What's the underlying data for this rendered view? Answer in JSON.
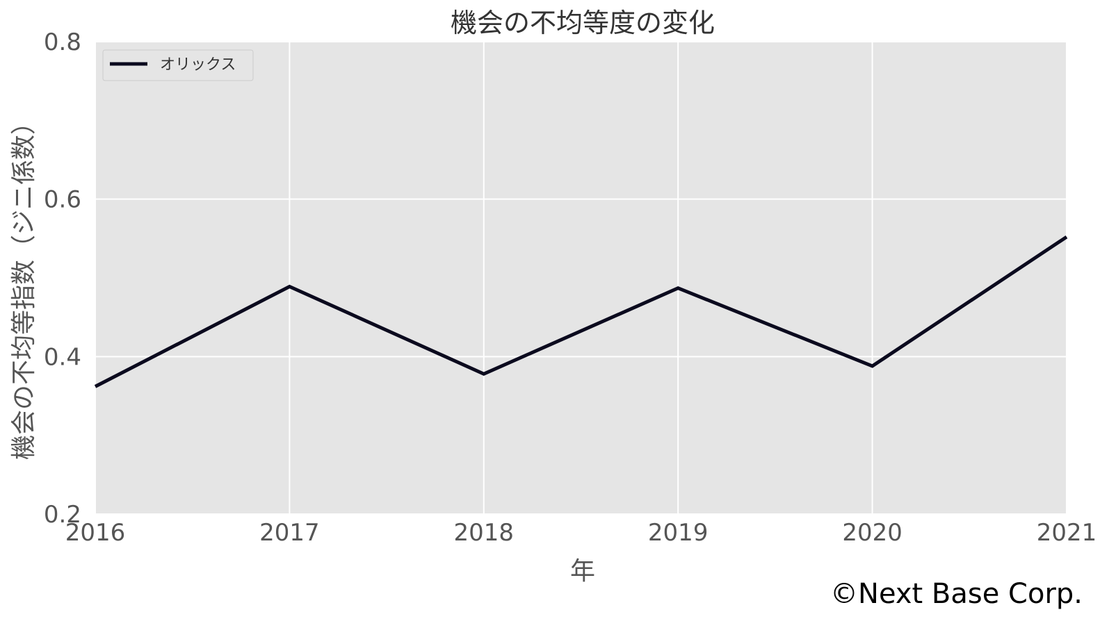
{
  "chart_data": {
    "type": "line",
    "title": "機会の不均等度の変化",
    "xlabel": "年",
    "ylabel": "機会の不均等指数（ジニ係数）",
    "x": [
      "2016",
      "2017",
      "2018",
      "2019",
      "2020",
      "2021"
    ],
    "series": [
      {
        "name": "オリックス",
        "values": [
          0.362,
          0.489,
          0.378,
          0.487,
          0.388,
          0.552
        ],
        "color": "#0b0a1e"
      }
    ],
    "ylim": [
      0.2,
      0.8
    ],
    "yticks": [
      "0.2",
      "0.4",
      "0.6",
      "0.8"
    ],
    "xticks": [
      "2016",
      "2017",
      "2018",
      "2019",
      "2020",
      "2021"
    ],
    "grid": true,
    "legend_position": "top-left",
    "plot_background": "#e5e5e5",
    "grid_color": "#ffffff"
  },
  "copyright": "©Next Base Corp."
}
